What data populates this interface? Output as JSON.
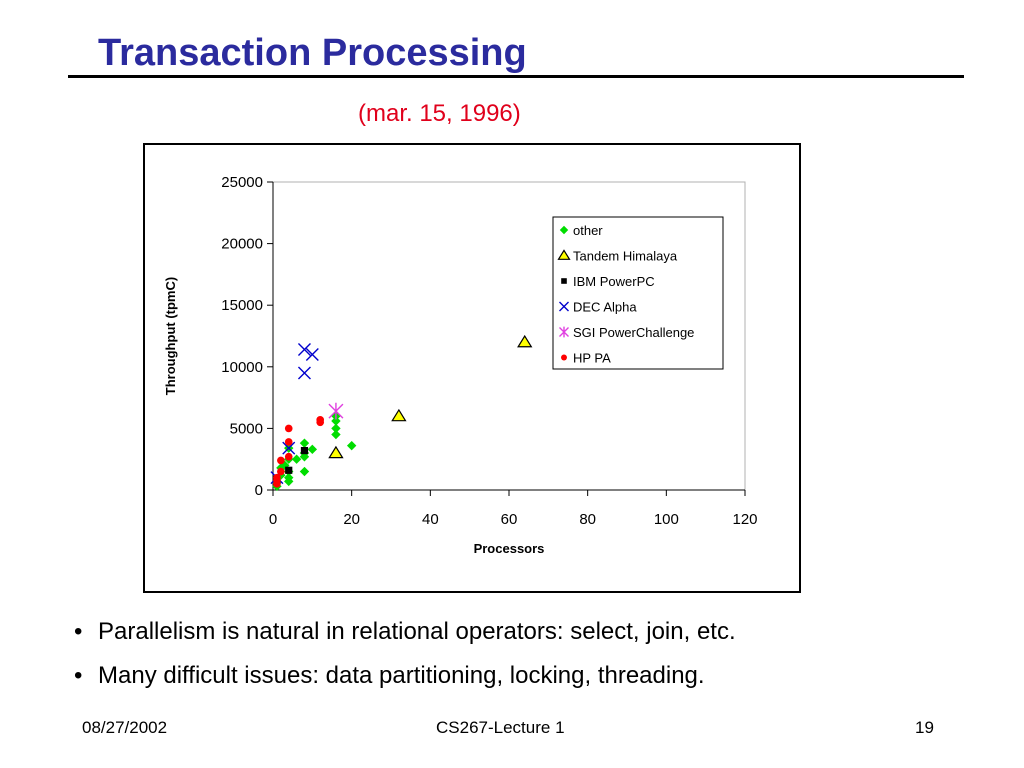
{
  "slide": {
    "title": "Transaction Processing",
    "subtitle": "(mar. 15, 1996)",
    "bullets": [
      "Parallelism is natural in relational operators: select, join, etc.",
      "Many difficult issues: data partitioning, locking, threading."
    ],
    "footer": {
      "date": "08/27/2002",
      "course": "CS267-Lecture 1",
      "page": "19"
    }
  },
  "chart_data": {
    "type": "scatter",
    "xlabel": "Processors",
    "ylabel": "Throughput (tpmC)",
    "xlim": [
      0,
      120
    ],
    "ylim": [
      0,
      25000
    ],
    "xticks": [
      0,
      20,
      40,
      60,
      80,
      100,
      120
    ],
    "yticks": [
      0,
      5000,
      10000,
      15000,
      20000,
      25000
    ],
    "grid": false,
    "legend_position": "top-right",
    "series": [
      {
        "name": "other",
        "marker": "diamond",
        "color": "#00dd00",
        "points": [
          [
            1,
            300
          ],
          [
            1,
            600
          ],
          [
            2,
            1200
          ],
          [
            2,
            1800
          ],
          [
            3,
            2000
          ],
          [
            4,
            700
          ],
          [
            4,
            1000
          ],
          [
            4,
            1500
          ],
          [
            4,
            2500
          ],
          [
            4,
            3400
          ],
          [
            6,
            2500
          ],
          [
            8,
            1500
          ],
          [
            8,
            2700
          ],
          [
            8,
            3000
          ],
          [
            8,
            3800
          ],
          [
            10,
            3300
          ],
          [
            16,
            4500
          ],
          [
            16,
            5000
          ],
          [
            16,
            5600
          ],
          [
            16,
            6000
          ],
          [
            20,
            3600
          ]
        ]
      },
      {
        "name": "Tandem Himalaya",
        "marker": "triangle",
        "color": "#ffff00",
        "points": [
          [
            16,
            3000
          ],
          [
            32,
            6000
          ],
          [
            64,
            12000
          ]
        ]
      },
      {
        "name": "IBM PowerPC",
        "marker": "square",
        "color": "#000000",
        "points": [
          [
            4,
            1600
          ],
          [
            8,
            3200
          ]
        ]
      },
      {
        "name": "DEC Alpha",
        "marker": "x",
        "color": "#0000cc",
        "points": [
          [
            1,
            1000
          ],
          [
            4,
            3400
          ],
          [
            8,
            9500
          ],
          [
            8,
            11400
          ],
          [
            10,
            11000
          ]
        ]
      },
      {
        "name": "SGI PowerChallenge",
        "marker": "star",
        "color": "#e040e0",
        "points": [
          [
            16,
            6400
          ]
        ]
      },
      {
        "name": "HP PA",
        "marker": "circle",
        "color": "#ff0000",
        "points": [
          [
            1,
            500
          ],
          [
            1,
            800
          ],
          [
            1,
            1000
          ],
          [
            2,
            1500
          ],
          [
            2,
            2400
          ],
          [
            4,
            2700
          ],
          [
            4,
            3900
          ],
          [
            4,
            5000
          ],
          [
            12,
            5500
          ],
          [
            12,
            5700
          ]
        ]
      }
    ]
  }
}
